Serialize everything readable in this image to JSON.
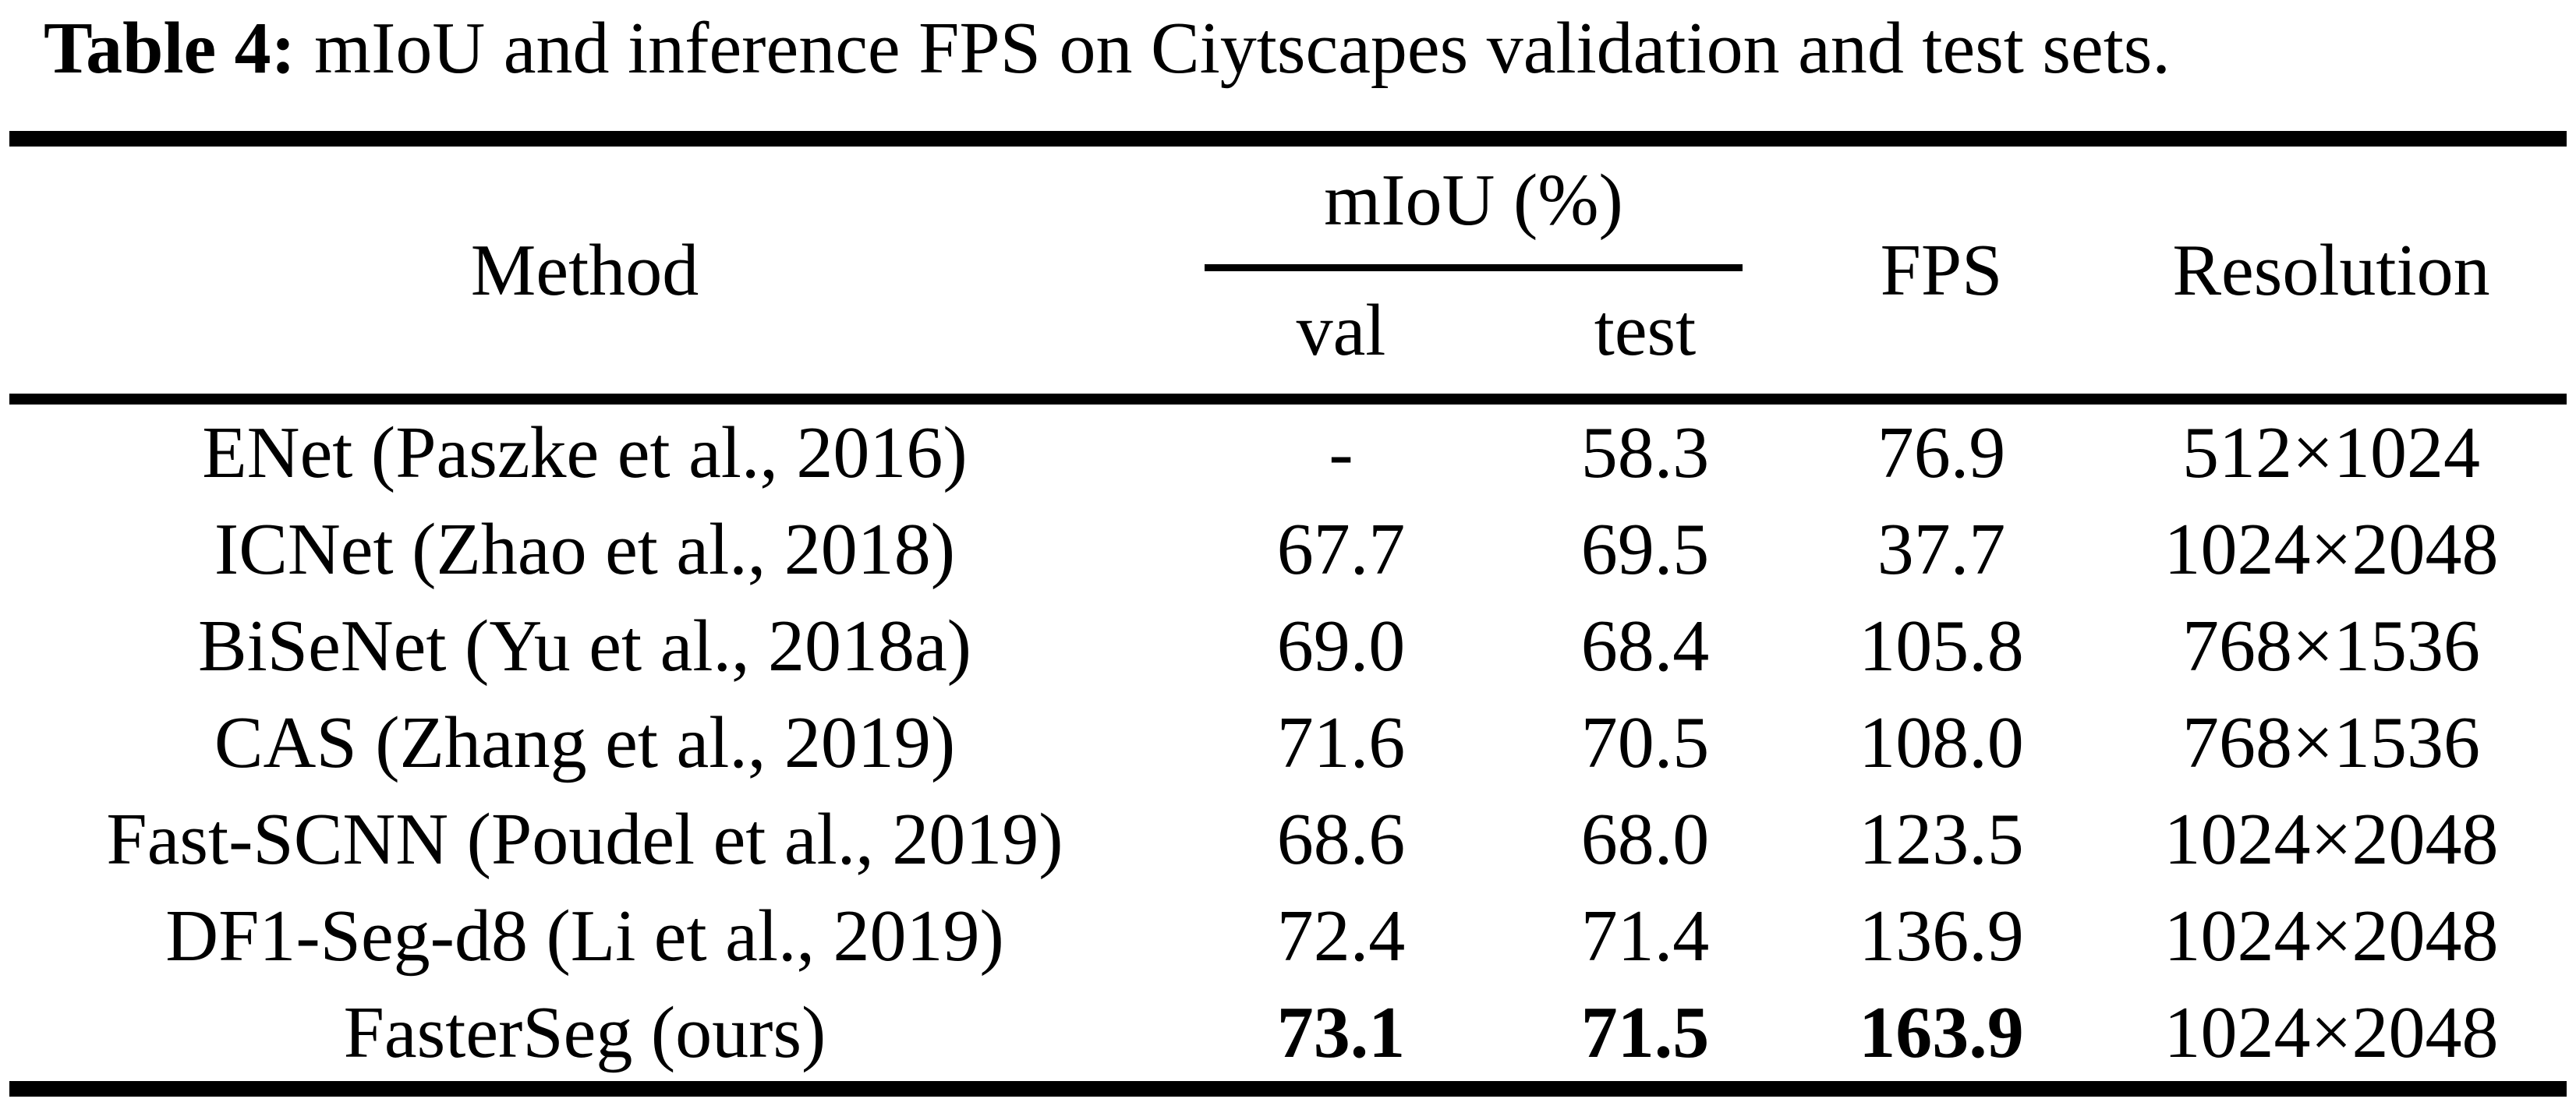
{
  "caption": {
    "label": "Table 4:",
    "text": "mIoU and inference FPS on Ciytscapes validation and test sets."
  },
  "table": {
    "headers": {
      "method": "Method",
      "miou_group": "mIoU (%)",
      "val": "val",
      "test": "test",
      "fps": "FPS",
      "resolution": "Resolution"
    },
    "rows": [
      {
        "method": "ENet (Paszke et al., 2016)",
        "val": "-",
        "test": "58.3",
        "fps": "76.9",
        "resolution": "512×1024"
      },
      {
        "method": "ICNet (Zhao et al., 2018)",
        "val": "67.7",
        "test": "69.5",
        "fps": "37.7",
        "resolution": "1024×2048"
      },
      {
        "method": "BiSeNet (Yu et al., 2018a)",
        "val": "69.0",
        "test": "68.4",
        "fps": "105.8",
        "resolution": "768×1536"
      },
      {
        "method": "CAS (Zhang et al., 2019)",
        "val": "71.6",
        "test": "70.5",
        "fps": "108.0",
        "resolution": "768×1536"
      },
      {
        "method": "Fast-SCNN (Poudel et al., 2019)",
        "val": "68.6",
        "test": "68.0",
        "fps": "123.5",
        "resolution": "1024×2048"
      },
      {
        "method": "DF1-Seg-d8 (Li et al., 2019)",
        "val": "72.4",
        "test": "71.4",
        "fps": "136.9",
        "resolution": "1024×2048"
      },
      {
        "method": "FasterSeg (ours)",
        "val": "73.1",
        "test": "71.5",
        "fps": "163.9",
        "resolution": "1024×2048"
      }
    ]
  }
}
